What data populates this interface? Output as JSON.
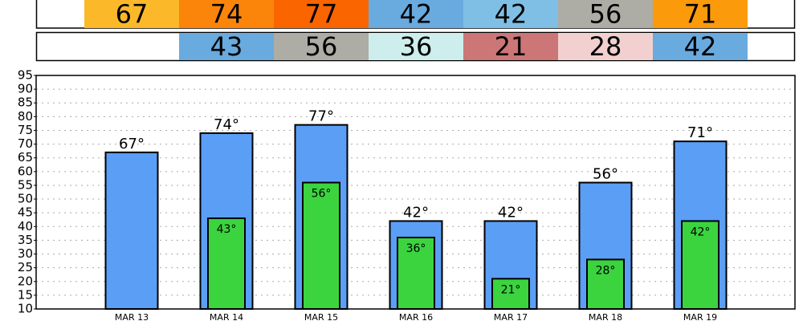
{
  "chart_data": {
    "type": "bar",
    "categories": [
      "MAR 13",
      "MAR 14",
      "MAR 15",
      "MAR 16",
      "MAR 17",
      "MAR 18",
      "MAR 19"
    ],
    "series": [
      {
        "color": "#5b9ef5",
        "values": [
          67,
          74,
          77,
          42,
          42,
          56,
          71
        ],
        "value_labels": [
          "67°",
          "74°",
          "77°",
          "42°",
          "42°",
          "56°",
          "71°"
        ],
        "cell_colors": [
          "#fbb829",
          "#fb840a",
          "#fa6500",
          "#69aadf",
          "#7fbfe5",
          "#adaca5",
          "#fb9a0b"
        ]
      },
      {
        "color": "#3bd43f",
        "values": [
          null,
          43,
          56,
          36,
          21,
          28,
          42
        ],
        "value_labels": [
          null,
          "43°",
          "56°",
          "36°",
          "21°",
          "28°",
          "42°"
        ],
        "cell_colors": [
          null,
          "#69aadf",
          "#adaca5",
          "#cdeeec",
          "#cc7677",
          "#f3d0d0",
          "#69aadf"
        ]
      }
    ],
    "ylim": [
      10,
      95
    ],
    "yticks": [
      10,
      15,
      20,
      25,
      30,
      35,
      40,
      45,
      50,
      55,
      60,
      65,
      70,
      75,
      80,
      85,
      90,
      95
    ],
    "grid": true
  }
}
